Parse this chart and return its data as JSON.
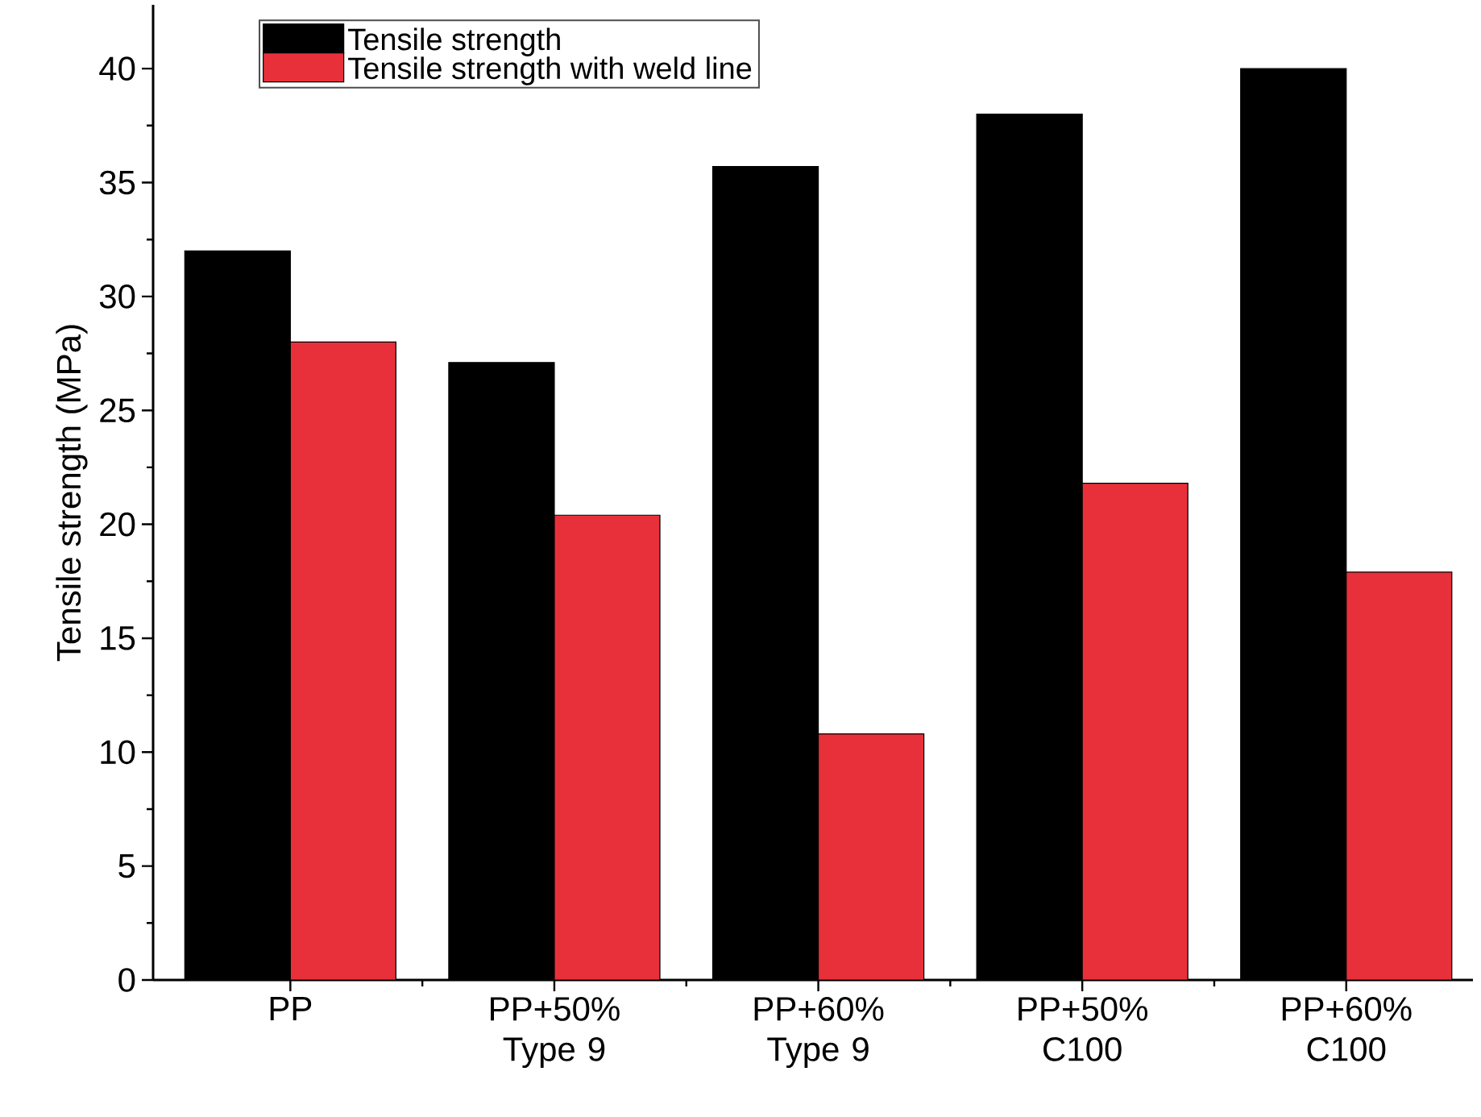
{
  "chart_data": {
    "type": "bar",
    "ylabel": "Tensile strength (MPa)",
    "categories": [
      "PP",
      "PP+50% Type 9",
      "PP+60% Type 9",
      "PP+50% C100",
      "PP+60% C100"
    ],
    "series": [
      {
        "name": "Tensile strength",
        "color": "#000000",
        "values": [
          32.0,
          27.1,
          35.7,
          38.0,
          40.0
        ]
      },
      {
        "name": "Tensile strength with weld line",
        "color": "#e8303a",
        "values": [
          28.0,
          20.4,
          10.8,
          21.8,
          17.9
        ]
      }
    ],
    "ylim": [
      0,
      42.8
    ],
    "yticks": [
      0,
      5,
      10,
      15,
      20,
      25,
      30,
      35,
      40
    ],
    "grid": false,
    "legend": "top left"
  }
}
